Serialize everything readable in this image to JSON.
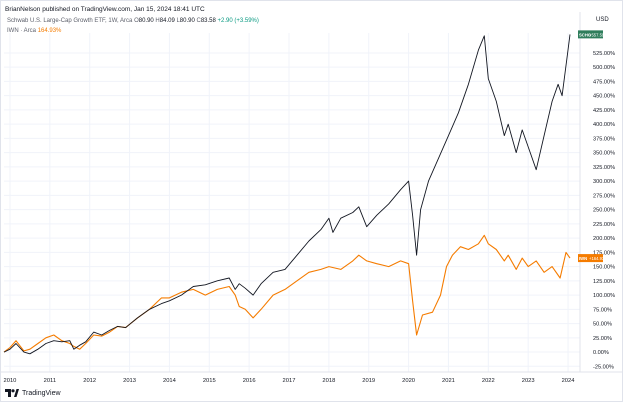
{
  "header": {
    "published": "BrianNelson published on TradingView.com, Jan 15, 2024 18:41 UTC"
  },
  "legend": {
    "schg": {
      "name": "Schwab U.S. Large-Cap Growth ETF, 1W, Arca",
      "o_label": "O",
      "o": "80.90",
      "h_label": "H",
      "h": "84.09",
      "l_label": "L",
      "l": "80.90",
      "c_label": "C",
      "c": "83.58",
      "change": "+2.90 (+3.59%)"
    },
    "iwn": {
      "name": "IWN · Arca",
      "value": "164.93%"
    }
  },
  "currency": "USD",
  "footer": {
    "brand": "TradingView"
  },
  "colors": {
    "schg": "#131722",
    "iwn": "#f57c00",
    "schg_label_bg": "#2e7d5b",
    "grid": "#f0f3fa"
  },
  "chart_data": {
    "type": "line",
    "title": "",
    "xlabel": "",
    "ylabel": "",
    "y_unit": "%",
    "ylim": [
      -35,
      600
    ],
    "x_ticks": [
      "2010",
      "2011",
      "2012",
      "2013",
      "2014",
      "2015",
      "2016",
      "2017",
      "2018",
      "2019",
      "2020",
      "2021",
      "2022",
      "2023",
      "2024"
    ],
    "y_ticks": [
      "-25.00%",
      "0.00%",
      "25.00%",
      "50.00%",
      "75.00%",
      "100.00%",
      "125.00%",
      "150.00%",
      "175.00%",
      "200.00%",
      "225.00%",
      "250.00%",
      "275.00%",
      "300.00%",
      "325.00%",
      "350.00%",
      "375.00%",
      "400.00%",
      "425.00%",
      "450.00%",
      "475.00%",
      "500.00%",
      "525.00%"
    ],
    "y_tick_values": [
      -25,
      0,
      25,
      50,
      75,
      100,
      125,
      150,
      175,
      200,
      225,
      250,
      275,
      300,
      325,
      350,
      375,
      400,
      425,
      450,
      475,
      500,
      525
    ],
    "grid": true,
    "series": [
      {
        "name": "SCHG",
        "end_label": "+557.59%",
        "x": [
          2009.85,
          2010.0,
          2010.15,
          2010.35,
          2010.5,
          2010.7,
          2010.9,
          2011.1,
          2011.3,
          2011.5,
          2011.6,
          2011.75,
          2011.9,
          2012.1,
          2012.3,
          2012.5,
          2012.7,
          2012.9,
          2013.2,
          2013.5,
          2013.8,
          2014.0,
          2014.3,
          2014.6,
          2014.9,
          2015.2,
          2015.5,
          2015.65,
          2015.75,
          2015.9,
          2016.1,
          2016.3,
          2016.6,
          2016.9,
          2017.2,
          2017.5,
          2017.8,
          2018.0,
          2018.1,
          2018.3,
          2018.6,
          2018.75,
          2018.95,
          2019.2,
          2019.5,
          2019.8,
          2020.0,
          2020.1,
          2020.2,
          2020.3,
          2020.5,
          2020.75,
          2021.0,
          2021.25,
          2021.5,
          2021.75,
          2021.9,
          2022.0,
          2022.2,
          2022.4,
          2022.5,
          2022.7,
          2022.85,
          2023.0,
          2023.2,
          2023.4,
          2023.6,
          2023.75,
          2023.85,
          2024.0,
          2024.05
        ],
        "values": [
          0,
          5,
          15,
          0,
          -3,
          5,
          15,
          20,
          18,
          20,
          5,
          12,
          18,
          35,
          30,
          38,
          45,
          43,
          60,
          75,
          85,
          90,
          100,
          115,
          118,
          125,
          130,
          110,
          120,
          112,
          100,
          120,
          140,
          145,
          170,
          195,
          215,
          235,
          210,
          235,
          245,
          255,
          220,
          240,
          260,
          285,
          300,
          240,
          170,
          250,
          300,
          340,
          380,
          420,
          470,
          530,
          555,
          480,
          440,
          380,
          400,
          350,
          390,
          360,
          320,
          380,
          440,
          470,
          450,
          530,
          557.59
        ]
      },
      {
        "name": "IWN",
        "end_label": "+164.93%",
        "x": [
          2009.85,
          2010.0,
          2010.15,
          2010.35,
          2010.5,
          2010.7,
          2010.9,
          2011.1,
          2011.3,
          2011.5,
          2011.6,
          2011.75,
          2011.9,
          2012.1,
          2012.3,
          2012.5,
          2012.7,
          2012.9,
          2013.2,
          2013.5,
          2013.8,
          2014.0,
          2014.3,
          2014.6,
          2014.9,
          2015.2,
          2015.5,
          2015.65,
          2015.75,
          2015.9,
          2016.1,
          2016.3,
          2016.6,
          2016.9,
          2017.2,
          2017.5,
          2017.8,
          2018.0,
          2018.3,
          2018.6,
          2018.75,
          2018.95,
          2019.2,
          2019.5,
          2019.8,
          2020.0,
          2020.1,
          2020.2,
          2020.35,
          2020.6,
          2020.8,
          2020.95,
          2021.1,
          2021.3,
          2021.5,
          2021.75,
          2021.9,
          2022.0,
          2022.2,
          2022.4,
          2022.5,
          2022.7,
          2022.85,
          2023.0,
          2023.2,
          2023.4,
          2023.6,
          2023.8,
          2023.95,
          2024.05
        ],
        "values": [
          0,
          8,
          20,
          2,
          5,
          15,
          25,
          30,
          20,
          15,
          10,
          5,
          15,
          30,
          28,
          35,
          45,
          43,
          60,
          75,
          95,
          95,
          105,
          110,
          100,
          110,
          115,
          100,
          80,
          75,
          60,
          75,
          100,
          110,
          125,
          140,
          145,
          150,
          145,
          160,
          170,
          160,
          155,
          150,
          160,
          155,
          90,
          30,
          65,
          70,
          100,
          150,
          170,
          185,
          180,
          190,
          205,
          190,
          180,
          160,
          170,
          145,
          165,
          150,
          160,
          140,
          150,
          130,
          175,
          164.93
        ]
      }
    ]
  }
}
